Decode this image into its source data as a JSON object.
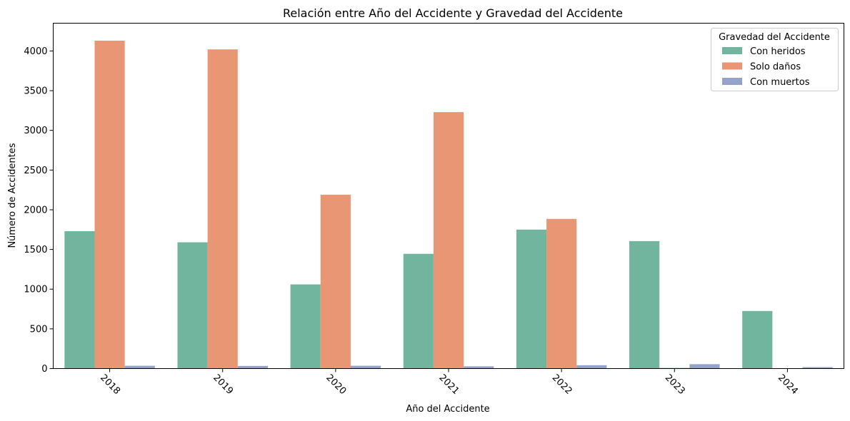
{
  "chart_data": {
    "type": "bar",
    "title": "Relación entre Año del Accidente y Gravedad del Accidente",
    "xlabel": "Año del Accidente",
    "ylabel": "Número de Accidentes",
    "categories": [
      "2018",
      "2019",
      "2020",
      "2021",
      "2022",
      "2023",
      "2024"
    ],
    "ylim": [
      0,
      4350
    ],
    "yticks": [
      0,
      500,
      1000,
      1500,
      2000,
      2500,
      3000,
      3500,
      4000
    ],
    "grid": false,
    "legend": {
      "title": "Gravedad del Accidente",
      "placement": "top-right"
    },
    "series": [
      {
        "name": "Con heridos",
        "color": "#72b59f",
        "values": [
          1730,
          1590,
          1060,
          1445,
          1750,
          1605,
          725
        ]
      },
      {
        "name": "Solo daños",
        "color": "#e99674",
        "values": [
          4130,
          4020,
          2190,
          3230,
          1885,
          8,
          0
        ]
      },
      {
        "name": "Con muertos",
        "color": "#94a3c9",
        "values": [
          35,
          33,
          35,
          28,
          42,
          55,
          18
        ]
      }
    ]
  }
}
